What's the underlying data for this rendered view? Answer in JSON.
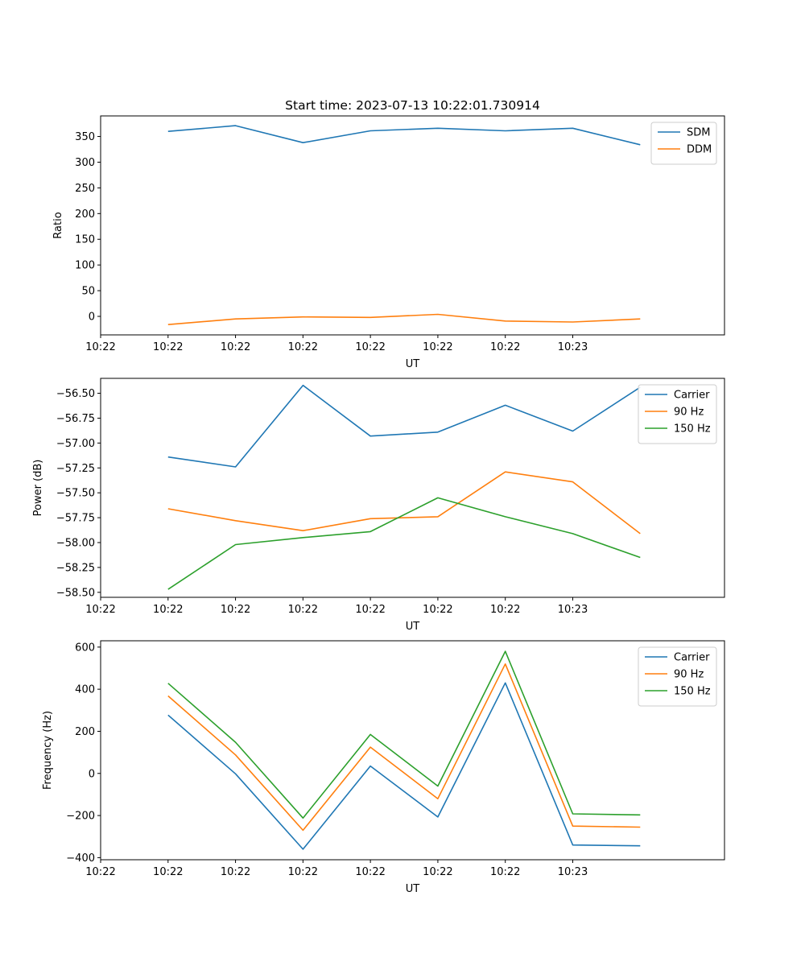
{
  "figure": {
    "title": "Start time: 2023-07-13 10:22:01.730914"
  },
  "colors": {
    "blue": "#1f77b4",
    "orange": "#ff7f0e",
    "green": "#2ca02c"
  },
  "chart_data": [
    {
      "type": "line",
      "title": "Start time: 2023-07-13 10:22:01.730914",
      "xlabel": "UT",
      "ylabel": "Ratio",
      "xticks": [
        "10:22",
        "10:22",
        "10:22",
        "10:22",
        "10:22",
        "10:22",
        "10:22",
        "10:23"
      ],
      "x": [
        1,
        2,
        3,
        4,
        5,
        6,
        7,
        8
      ],
      "xlim": [
        0,
        9.25
      ],
      "ylim": [
        -36,
        390
      ],
      "yticks": [
        0,
        50,
        100,
        150,
        200,
        250,
        300,
        350
      ],
      "legend": "top-right",
      "series": [
        {
          "name": "SDM",
          "color": "#1f77b4",
          "values": [
            360,
            371,
            338,
            361,
            366,
            361,
            366,
            334
          ]
        },
        {
          "name": "DDM",
          "color": "#ff7f0e",
          "values": [
            -16,
            -5,
            -1,
            -2,
            4,
            -9,
            -11,
            -5
          ]
        }
      ]
    },
    {
      "type": "line",
      "title": "",
      "xlabel": "UT",
      "ylabel": "Power (dB)",
      "xticks": [
        "10:22",
        "10:22",
        "10:22",
        "10:22",
        "10:22",
        "10:22",
        "10:22",
        "10:23"
      ],
      "x": [
        1,
        2,
        3,
        4,
        5,
        6,
        7,
        8
      ],
      "xlim": [
        0,
        9.25
      ],
      "ylim": [
        -58.55,
        -56.35
      ],
      "yticks": [
        -58.5,
        -58.25,
        -58.0,
        -57.75,
        -57.5,
        -57.25,
        -57.0,
        -56.75,
        -56.5
      ],
      "legend": "top-right",
      "series": [
        {
          "name": "Carrier",
          "color": "#1f77b4",
          "values": [
            -57.14,
            -57.24,
            -56.42,
            -56.93,
            -56.89,
            -56.62,
            -56.88,
            -56.44
          ]
        },
        {
          "name": "90 Hz",
          "color": "#ff7f0e",
          "values": [
            -57.66,
            -57.78,
            -57.88,
            -57.76,
            -57.74,
            -57.29,
            -57.39,
            -57.91
          ]
        },
        {
          "name": "150 Hz",
          "color": "#2ca02c",
          "values": [
            -58.47,
            -58.02,
            -57.95,
            -57.89,
            -57.55,
            -57.74,
            -57.91,
            -58.15
          ]
        }
      ]
    },
    {
      "type": "line",
      "title": "",
      "xlabel": "UT",
      "ylabel": "Frequency (Hz)",
      "xticks": [
        "10:22",
        "10:22",
        "10:22",
        "10:22",
        "10:22",
        "10:22",
        "10:22",
        "10:23"
      ],
      "x": [
        1,
        2,
        3,
        4,
        5,
        6,
        7,
        8
      ],
      "xlim": [
        0,
        9.25
      ],
      "ylim": [
        -410,
        630
      ],
      "yticks": [
        -400,
        -200,
        0,
        200,
        400,
        600
      ],
      "legend": "top-right",
      "series": [
        {
          "name": "Carrier",
          "color": "#1f77b4",
          "values": [
            277,
            -2,
            -360,
            35,
            -207,
            430,
            -340,
            -344
          ]
        },
        {
          "name": "90 Hz",
          "color": "#ff7f0e",
          "values": [
            368,
            88,
            -270,
            125,
            -120,
            520,
            -250,
            -255
          ]
        },
        {
          "name": "150 Hz",
          "color": "#2ca02c",
          "values": [
            428,
            148,
            -212,
            185,
            -60,
            580,
            -192,
            -197
          ]
        }
      ]
    }
  ]
}
